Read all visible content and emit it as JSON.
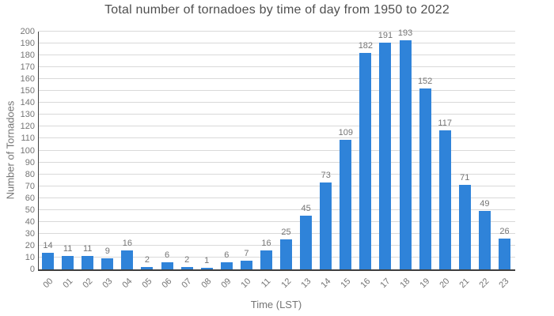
{
  "chart_data": {
    "type": "bar",
    "title": "Total number of tornadoes by time of day from 1950 to 2022",
    "xlabel": "Time (LST)",
    "ylabel": "Number of Tornadoes",
    "categories": [
      "00",
      "01",
      "02",
      "03",
      "04",
      "05",
      "06",
      "07",
      "08",
      "09",
      "10",
      "11",
      "12",
      "13",
      "14",
      "15",
      "16",
      "17",
      "18",
      "19",
      "20",
      "21",
      "22",
      "23"
    ],
    "values": [
      14,
      11,
      11,
      9,
      16,
      2,
      6,
      2,
      1,
      6,
      7,
      16,
      25,
      45,
      73,
      109,
      182,
      191,
      193,
      152,
      117,
      71,
      49,
      26
    ],
    "ylim": [
      0,
      200
    ],
    "yticks": [
      0,
      10,
      20,
      30,
      40,
      50,
      60,
      70,
      80,
      90,
      100,
      110,
      120,
      130,
      140,
      150,
      160,
      170,
      180,
      190,
      200
    ],
    "grid": true,
    "legend_position": "none",
    "value_labels_shown": true,
    "bar_color": "#2F83D9",
    "axis_color": "#3f3f3f",
    "gridline_color": "#d9d9d9",
    "label_color": "#757575",
    "title_color": "#4f4f4f"
  }
}
